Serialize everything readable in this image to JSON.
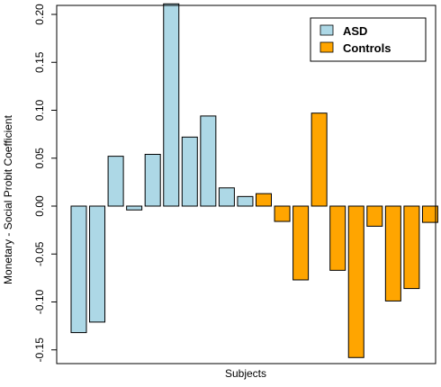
{
  "chart_data": {
    "type": "bar",
    "title": "",
    "xlabel": "Subjects",
    "ylabel": "Monetary - Social Probit Coefficient",
    "ylim": [
      -0.17,
      0.22
    ],
    "yticks": [
      "-0.15",
      "-0.10",
      "-0.05",
      "0.00",
      "0.05",
      "0.10",
      "0.15",
      "0.20"
    ],
    "ytick_values": [
      -0.15,
      -0.1,
      -0.05,
      0.0,
      0.05,
      0.1,
      0.15,
      0.2
    ],
    "grid": false,
    "legend_position": "top-right",
    "series": [
      {
        "name": "ASD",
        "color": "#add8e6",
        "values": [
          -0.132,
          -0.121,
          0.052,
          -0.004,
          0.054,
          0.211,
          0.072,
          0.094,
          0.019,
          0.01
        ]
      },
      {
        "name": "Controls",
        "color": "#ffa500",
        "values": [
          0.013,
          -0.016,
          -0.077,
          0.097,
          -0.067,
          -0.158,
          -0.021,
          -0.099,
          -0.086,
          -0.017
        ]
      }
    ]
  }
}
